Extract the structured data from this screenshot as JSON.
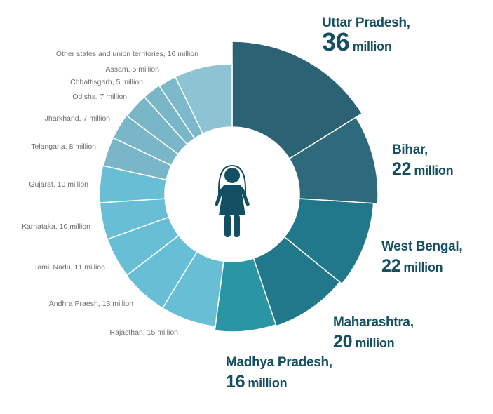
{
  "chart_data": {
    "type": "pie",
    "variant": "donut with varying outer radius",
    "unit": "million",
    "categories": [
      "Uttar Pradesh",
      "Bihar",
      "West Bengal",
      "Maharashtra",
      "Madhya Pradesh",
      "Rajasthan",
      "Andhra Praesh",
      "Tamil Nadu",
      "Karnataka",
      "Gujarat",
      "Telangana",
      "Jharkhand",
      "Odisha",
      "Chhattisgarh",
      "Assam",
      "Other states and union territories"
    ],
    "values": [
      36,
      22,
      22,
      20,
      16,
      15,
      13,
      11,
      10,
      10,
      8,
      7,
      7,
      5,
      5,
      16
    ],
    "colors": [
      "#2b6375",
      "#2e6a7c",
      "#22788b",
      "#22788b",
      "#2a95a3",
      "#68bfd5",
      "#68bfd5",
      "#68bfd5",
      "#68bfd5",
      "#68bfd5",
      "#79b6c7",
      "#79b6c7",
      "#79b6c7",
      "#79b6c7",
      "#7cb9ca",
      "#8ec3d4"
    ],
    "big_labels": [
      {
        "name": "Uttar Pradesh,",
        "value": "36",
        "unit": "million"
      },
      {
        "name": "Bihar,",
        "value": "22",
        "unit": "million"
      },
      {
        "name": "West Bengal,",
        "value": "22",
        "unit": "million"
      },
      {
        "name": "Maharashtra,",
        "value": "20",
        "unit": "million"
      },
      {
        "name": "Madhya Pradesh,",
        "value": "16",
        "unit": "million"
      }
    ],
    "small_labels": [
      "Rajasthan, 15 million",
      "Andhra Praesh, 13 million",
      "Tamil Nadu, 11 million",
      "Karnataka, 10 million",
      "Gujarat, 10 million",
      "Telangana, 8 million",
      "Jharkhand, 7 million",
      "Odisha, 7 million",
      "Chhattisgarh, 5 million",
      "Assam, 5 million",
      "Other states and union territories, 16 million"
    ],
    "center_icon": "woman-icon"
  }
}
